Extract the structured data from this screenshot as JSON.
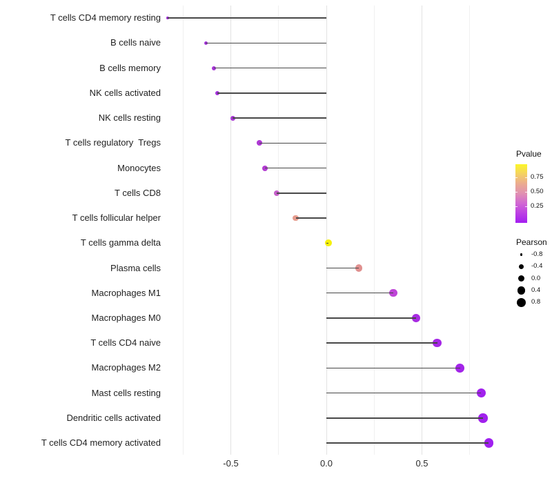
{
  "chart_data": {
    "type": "scatter",
    "variant": "lollipop",
    "title": "",
    "xlabel": "",
    "ylabel": "",
    "xlim": [
      -0.87,
      0.9
    ],
    "baseline_x": 0.0,
    "grid": true,
    "x_ticks": [
      {
        "value": -0.5,
        "label": "-0.5"
      },
      {
        "value": 0.0,
        "label": "0.0"
      },
      {
        "value": 0.5,
        "label": "0.5"
      }
    ],
    "x_minor_gridlines": [
      -0.75,
      -0.25,
      0.25,
      0.75
    ],
    "points": [
      {
        "label": "T cells CD4 memory resting",
        "pearson": -0.83,
        "pvalue": 0.02,
        "color": "#9E2BD6"
      },
      {
        "label": "B cells naive",
        "pearson": -0.63,
        "pvalue": 0.03,
        "color": "#A430DC"
      },
      {
        "label": "B cells memory",
        "pearson": -0.59,
        "pvalue": 0.05,
        "color": "#A733D9"
      },
      {
        "label": "NK cells activated",
        "pearson": -0.57,
        "pvalue": 0.04,
        "color": "#A52FDC"
      },
      {
        "label": "NK cells resting",
        "pearson": -0.49,
        "pvalue": 0.07,
        "color": "#A936D6"
      },
      {
        "label": "T cells regulatory  Tregs",
        "pearson": -0.35,
        "pvalue": 0.1,
        "color": "#AE39D4"
      },
      {
        "label": "Monocytes",
        "pearson": -0.32,
        "pvalue": 0.13,
        "color": "#B33CD2"
      },
      {
        "label": "T cells CD8",
        "pearson": -0.26,
        "pvalue": 0.25,
        "color": "#C55FC9"
      },
      {
        "label": "T cells follicular helper",
        "pearson": -0.16,
        "pvalue": 0.55,
        "color": "#E69B8D"
      },
      {
        "label": "T cells gamma delta",
        "pearson": 0.01,
        "pvalue": 0.97,
        "color": "#F6F10B"
      },
      {
        "label": "Plasma cells",
        "pearson": 0.17,
        "pvalue": 0.5,
        "color": "#E0908F"
      },
      {
        "label": "Macrophages M1",
        "pearson": 0.35,
        "pvalue": 0.18,
        "color": "#BE44D7"
      },
      {
        "label": "Macrophages M0",
        "pearson": 0.47,
        "pvalue": 0.06,
        "color": "#A82BE2"
      },
      {
        "label": "T cells CD4 naive",
        "pearson": 0.58,
        "pvalue": 0.04,
        "color": "#A527E6"
      },
      {
        "label": "Macrophages M2",
        "pearson": 0.7,
        "pvalue": 0.02,
        "color": "#A324E9"
      },
      {
        "label": "Mast cells resting",
        "pearson": 0.81,
        "pvalue": 0.01,
        "color": "#A121ED"
      },
      {
        "label": "Dendritic cells activated",
        "pearson": 0.82,
        "pvalue": 0.01,
        "color": "#A121ED"
      },
      {
        "label": "T cells CD4 memory activated",
        "pearson": 0.85,
        "pvalue": 0.005,
        "color": "#A020F0"
      }
    ],
    "legend_position": "right"
  },
  "legends": {
    "pvalue": {
      "title": "Pvalue",
      "ticks": [
        {
          "label": "0.75",
          "value": 0.75
        },
        {
          "label": "0.50",
          "value": 0.5
        },
        {
          "label": "0.25",
          "value": 0.25
        }
      ],
      "gradient_top_to_bottom": [
        "#FCF628",
        "#F4D163",
        "#EBAB90",
        "#E090B2",
        "#D167D3",
        "#BC40E3",
        "#A31EF0"
      ]
    },
    "pearson": {
      "title": "Pearson",
      "entries": [
        {
          "label": "-0.8",
          "value": -0.8
        },
        {
          "label": "-0.4",
          "value": -0.4
        },
        {
          "label": "0.0",
          "value": 0.0
        },
        {
          "label": "0.4",
          "value": 0.4
        },
        {
          "label": "0.8",
          "value": 0.8
        }
      ]
    }
  }
}
